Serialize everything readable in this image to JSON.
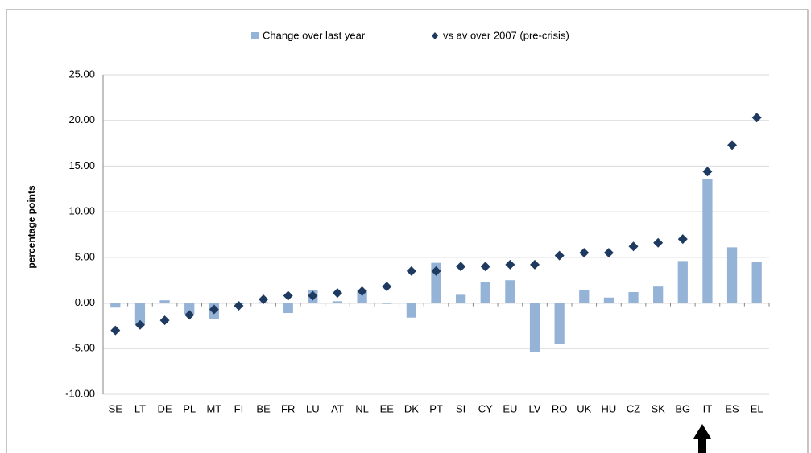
{
  "chart_data": {
    "type": "bar-diamond",
    "y_label": "percentage points",
    "categories": [
      "SE",
      "LT",
      "DE",
      "PL",
      "MT",
      "FI",
      "BE",
      "FR",
      "LU",
      "AT",
      "NL",
      "EE",
      "DK",
      "PT",
      "SI",
      "CY",
      "EU",
      "LV",
      "RO",
      "UK",
      "HU",
      "CZ",
      "SK",
      "BG",
      "IT",
      "ES",
      "EL"
    ],
    "series": [
      {
        "name": "Change over last year",
        "color": "#95b3d7",
        "kind": "bar",
        "values": [
          -0.5,
          -2.4,
          0.3,
          -1.2,
          -1.8,
          -0.1,
          0.1,
          -1.1,
          1.4,
          0.2,
          1.4,
          -0.1,
          -1.6,
          4.4,
          0.9,
          2.3,
          2.5,
          -5.4,
          -4.5,
          1.4,
          0.6,
          1.2,
          1.8,
          4.6,
          13.6,
          6.1,
          4.5
        ]
      },
      {
        "name": "vs av over 2007 (pre-crisis)",
        "color": "#1f3a60",
        "kind": "diamond",
        "values": [
          -3.0,
          -2.4,
          -1.9,
          -1.3,
          -0.7,
          -0.3,
          0.4,
          0.8,
          0.8,
          1.1,
          1.3,
          1.8,
          3.5,
          3.5,
          4.0,
          4.0,
          4.2,
          4.2,
          5.2,
          5.5,
          5.5,
          6.2,
          6.6,
          7.0,
          14.4,
          17.3,
          20.3
        ]
      }
    ],
    "ylim": [
      -10,
      25
    ],
    "yticks": [
      {
        "value": -10,
        "label": "-10.00"
      },
      {
        "value": -5,
        "label": "-5.00"
      },
      {
        "value": 0,
        "label": "0.00"
      },
      {
        "value": 5,
        "label": "5.00"
      },
      {
        "value": 10,
        "label": "10.00"
      },
      {
        "value": 15,
        "label": "15.00"
      },
      {
        "value": 20,
        "label": "20.00"
      },
      {
        "value": 25,
        "label": "25.00"
      }
    ],
    "grid": true
  }
}
